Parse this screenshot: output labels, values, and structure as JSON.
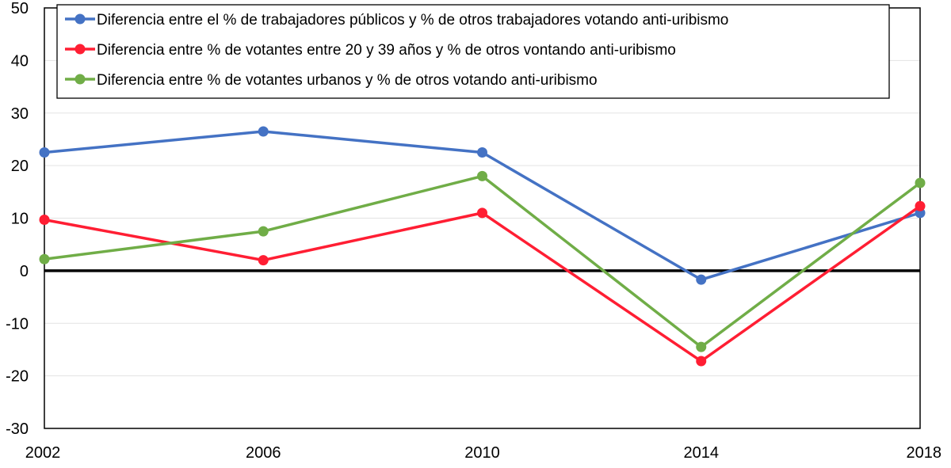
{
  "chart_data": {
    "type": "line",
    "x": [
      "2002",
      "2006",
      "2010",
      "2014",
      "2018"
    ],
    "ylim": [
      -30,
      50
    ],
    "yticks": [
      -30,
      -20,
      -10,
      0,
      10,
      20,
      30,
      40,
      50
    ],
    "yticks_labels": [
      "-30",
      "-20",
      "-10",
      "0",
      "10",
      "20",
      "30",
      "40",
      "50"
    ],
    "grid": "horizontal",
    "zero_line": true,
    "legend_position": "top-inside",
    "series": [
      {
        "name": "Diferencia entre el % de trabajadores públicos y % de otros trabajadores votando anti-uribismo",
        "color": "#4472C4",
        "values": [
          22.5,
          26.5,
          22.5,
          -1.7,
          11
        ]
      },
      {
        "name": "Diferencia entre % de votantes entre 20 y 39 años y % de otros vontando anti-uribismo",
        "color": "#FF1E33",
        "values": [
          9.7,
          2,
          11,
          -17.2,
          12.3
        ]
      },
      {
        "name": "Diferencia entre % de votantes urbanos y % de otros votando anti-uribismo",
        "color": "#70AD47",
        "values": [
          2.2,
          7.5,
          18,
          -14.5,
          16.7
        ]
      }
    ]
  }
}
